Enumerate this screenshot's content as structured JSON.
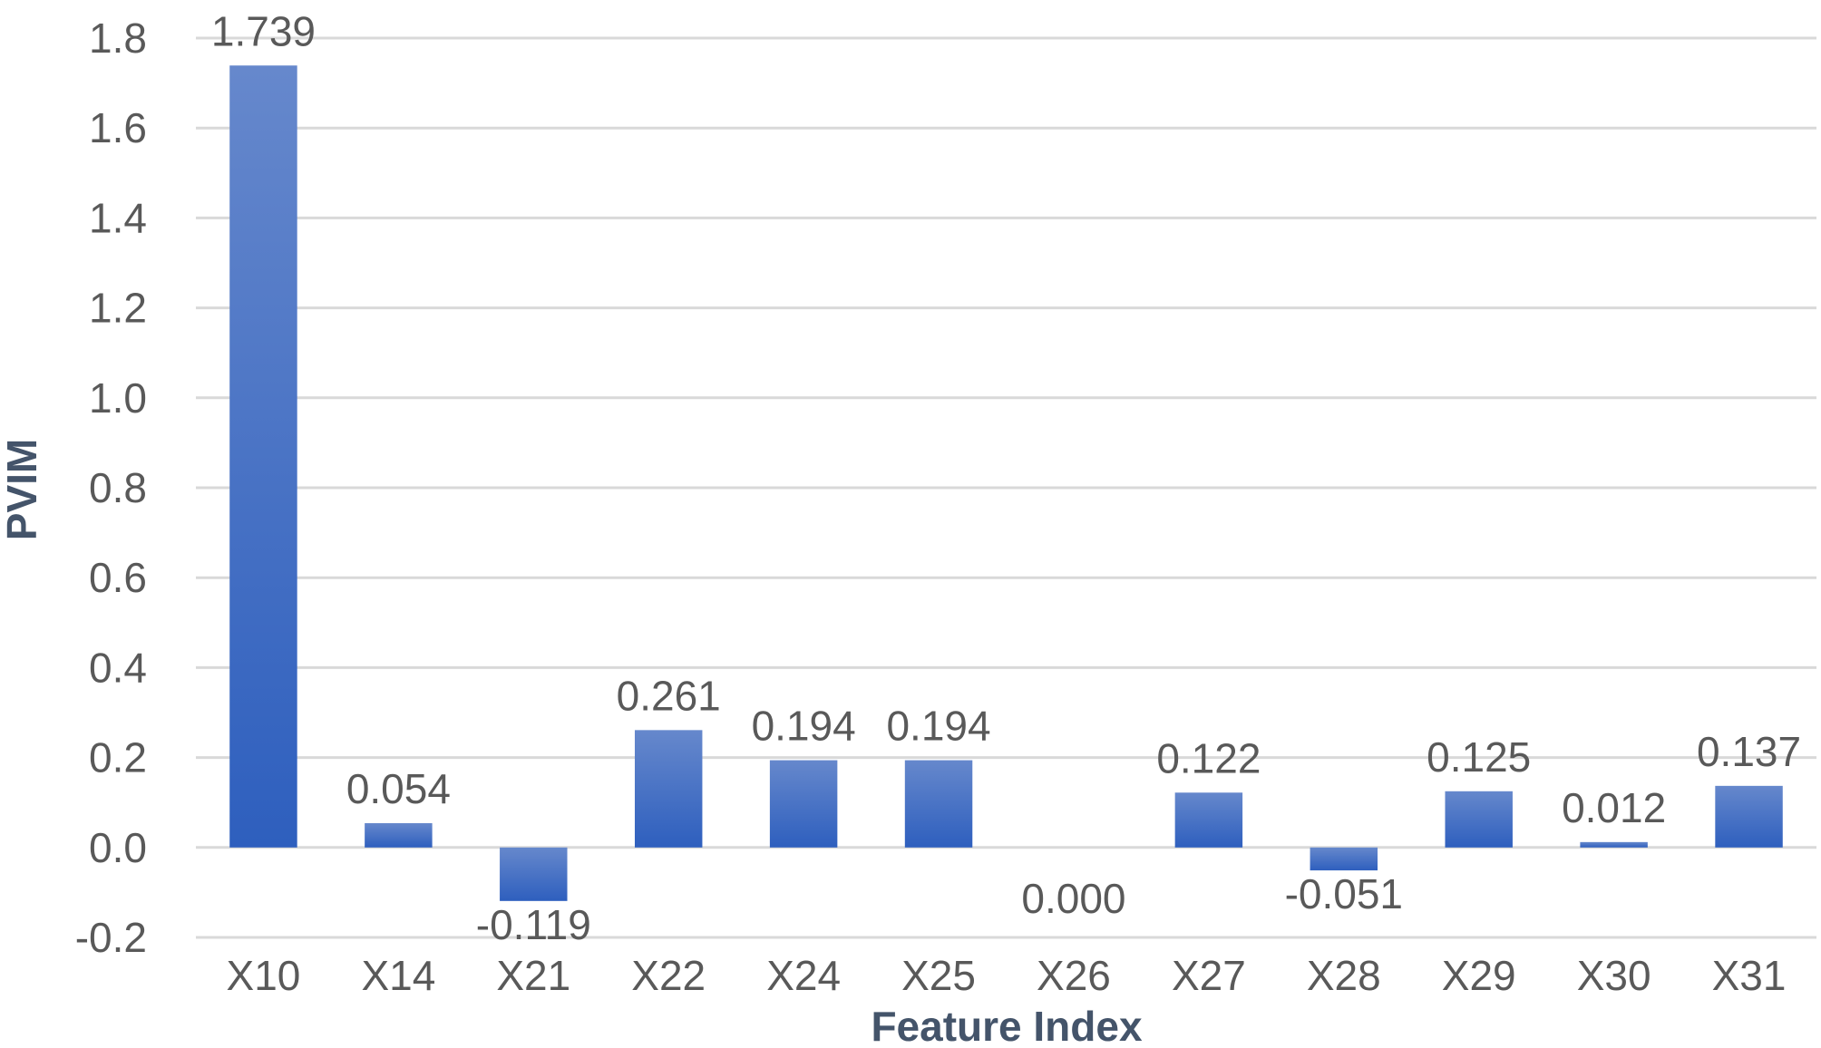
{
  "chart_data": {
    "type": "bar",
    "title": "",
    "xlabel": "Feature Index",
    "ylabel": "PVIM",
    "categories": [
      "X10",
      "X14",
      "X21",
      "X22",
      "X24",
      "X25",
      "X26",
      "X27",
      "X28",
      "X29",
      "X30",
      "X31"
    ],
    "values": [
      1.739,
      0.054,
      -0.119,
      0.261,
      0.194,
      0.194,
      0.0,
      0.122,
      -0.051,
      0.125,
      0.012,
      0.137
    ],
    "value_labels": [
      "1.739",
      "0.054",
      "-0.119",
      "0.261",
      "0.194",
      "0.194",
      "0.000",
      "0.122",
      "-0.051",
      "0.125",
      "0.012",
      "0.137"
    ],
    "ylim": [
      -0.2,
      1.8
    ],
    "yticks": [
      -0.2,
      0.0,
      0.2,
      0.4,
      0.6,
      0.8,
      1.0,
      1.2,
      1.4,
      1.6,
      1.8
    ],
    "ytick_labels": [
      "-0.2",
      "0.0",
      "0.2",
      "0.4",
      "0.6",
      "0.8",
      "1.0",
      "1.2",
      "1.4",
      "1.6",
      "1.8"
    ],
    "grid": true,
    "legend": "none",
    "colors": {
      "bar_top": "#6688cc",
      "bar_bottom": "#2e5fbe",
      "grid": "#d9d9d9",
      "text": "#595959",
      "axis_title": "#44546a"
    }
  }
}
